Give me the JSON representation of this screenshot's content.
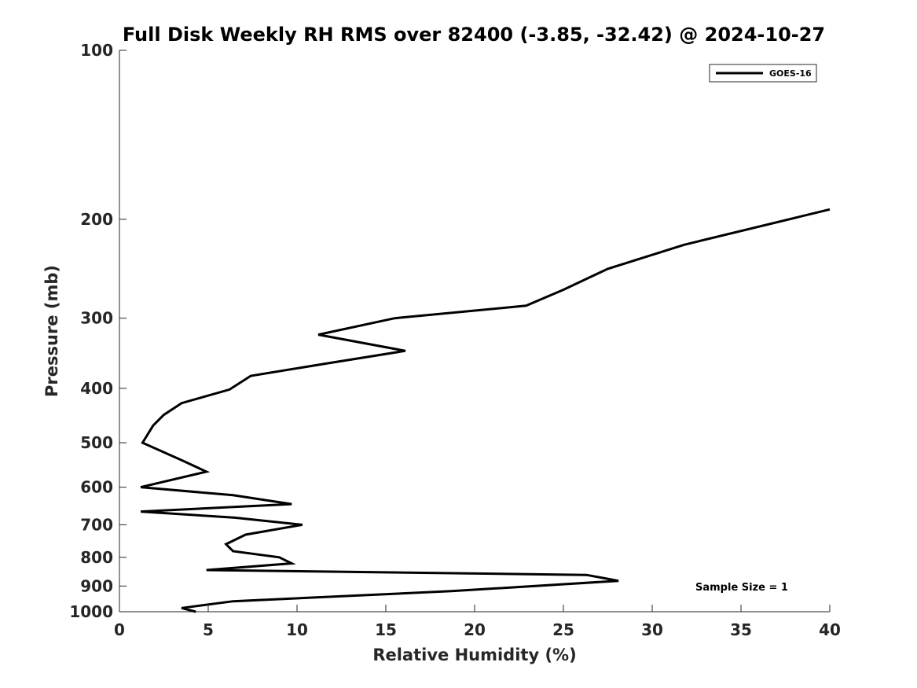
{
  "chart_data": {
    "type": "line",
    "title": "Full Disk Weekly RH RMS over 82400 (-3.85, -32.42) @ 2024-10-27",
    "xlabel": "Relative Humidity (%)",
    "ylabel": "Pressure (mb)",
    "xlim": [
      0,
      40
    ],
    "ylim": [
      100,
      1000
    ],
    "y_scale": "log",
    "y_reversed": true,
    "x_ticks": [
      "0",
      "5",
      "10",
      "15",
      "20",
      "25",
      "30",
      "35",
      "40"
    ],
    "y_ticks": [
      "100",
      "200",
      "300",
      "400",
      "500",
      "600",
      "700",
      "800",
      "900",
      "1000"
    ],
    "grid": false,
    "legend_position": "top-right",
    "annotation": "Sample Size = 1",
    "line_color": "#000000",
    "series": [
      {
        "name": "GOES-16",
        "points": [
          [
            40.0,
            192
          ],
          [
            31.8,
            222
          ],
          [
            27.5,
            245
          ],
          [
            25.0,
            267
          ],
          [
            22.9,
            285
          ],
          [
            15.5,
            300
          ],
          [
            11.2,
            321
          ],
          [
            16.1,
            343
          ],
          [
            11.5,
            362
          ],
          [
            7.4,
            380
          ],
          [
            6.2,
            402
          ],
          [
            3.5,
            425
          ],
          [
            2.5,
            446
          ],
          [
            1.9,
            466
          ],
          [
            1.3,
            500
          ],
          [
            3.5,
            537
          ],
          [
            4.9,
            563
          ],
          [
            1.2,
            600
          ],
          [
            6.4,
            620
          ],
          [
            9.7,
            643
          ],
          [
            1.2,
            663
          ],
          [
            6.5,
            680
          ],
          [
            10.3,
            700
          ],
          [
            7.1,
            729
          ],
          [
            6.0,
            758
          ],
          [
            6.4,
            780
          ],
          [
            9.0,
            800
          ],
          [
            9.7,
            820
          ],
          [
            4.9,
            843
          ],
          [
            26.3,
            860
          ],
          [
            28.1,
            881
          ],
          [
            18.7,
            919
          ],
          [
            6.4,
            958
          ],
          [
            3.5,
            985
          ],
          [
            4.3,
            1000
          ]
        ]
      }
    ]
  }
}
